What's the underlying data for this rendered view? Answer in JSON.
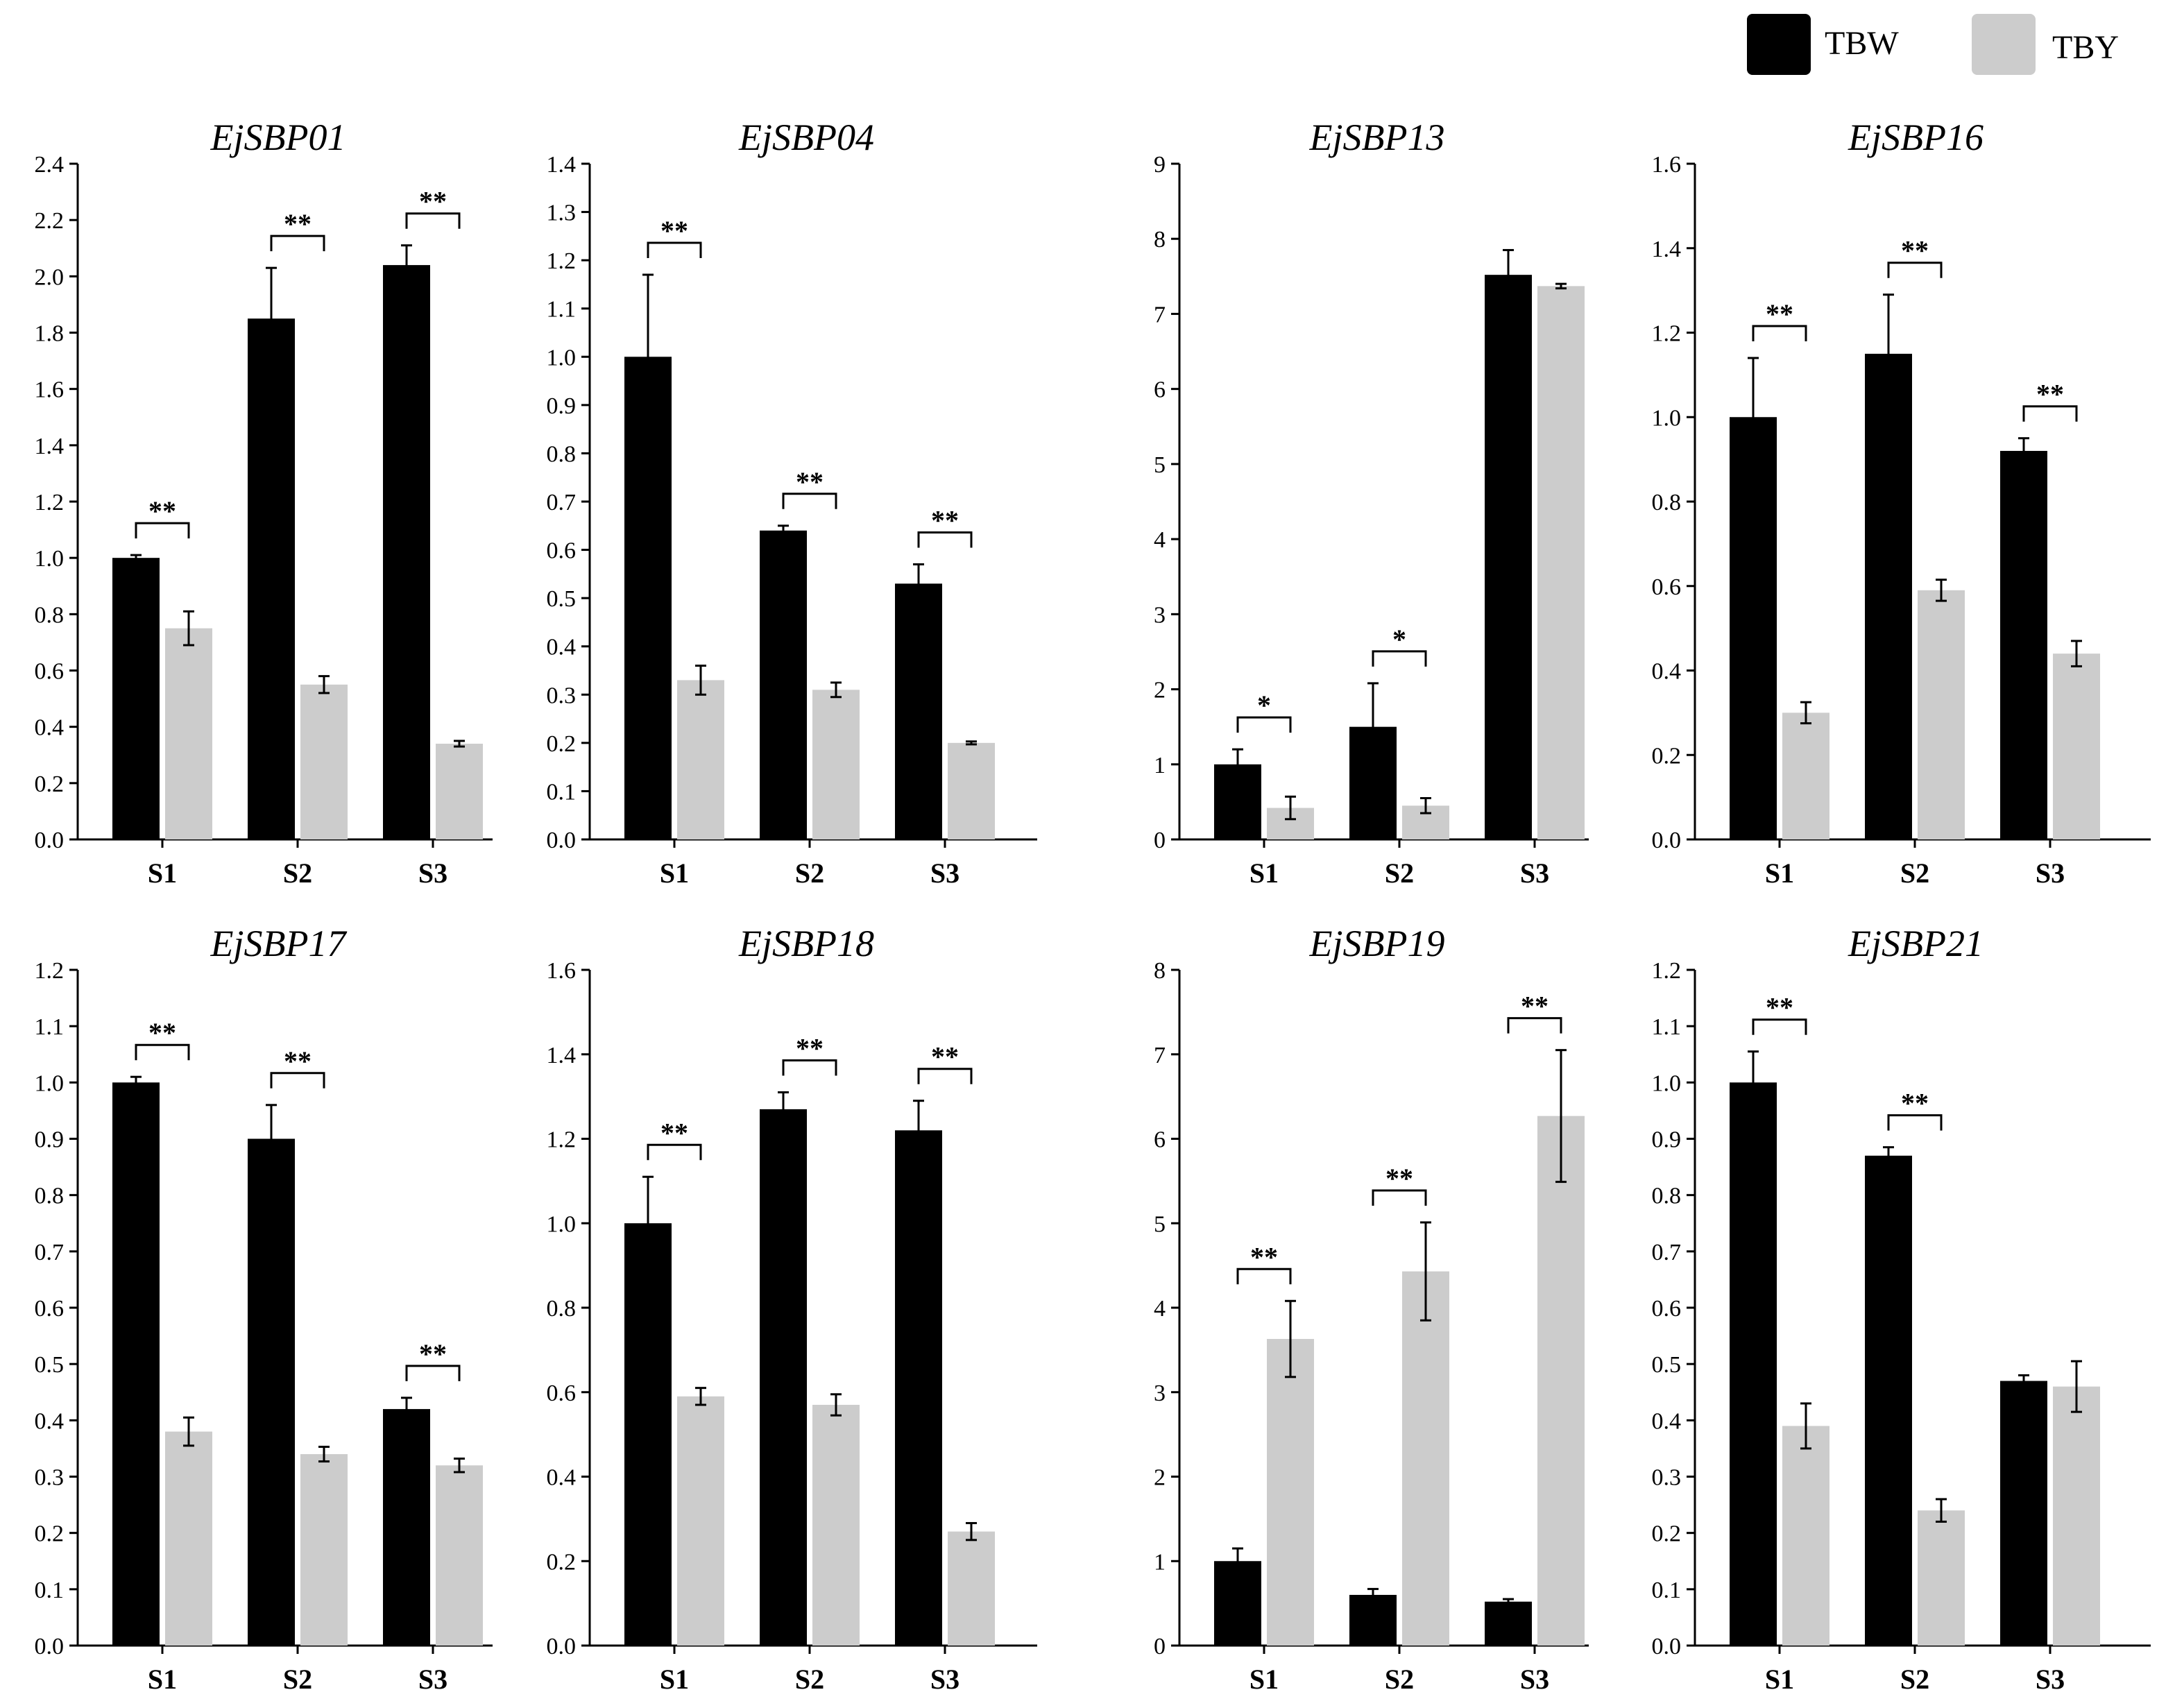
{
  "legend": [
    {
      "name": "TBW",
      "color": "#000000"
    },
    {
      "name": "TBY",
      "color": "#cccccc"
    }
  ],
  "chart_data": [
    {
      "type": "bar",
      "title": "EjSBP01",
      "categories": [
        "S1",
        "S2",
        "S3"
      ],
      "ylim": [
        0,
        2.4
      ],
      "ystep": 0.2,
      "yticks": [
        "0.0",
        "0.2",
        "0.4",
        "0.6",
        "0.8",
        "1.0",
        "1.2",
        "1.4",
        "1.6",
        "1.8",
        "2.0",
        "2.2",
        "2.4"
      ],
      "series": [
        {
          "name": "TBW",
          "values": [
            1.0,
            1.85,
            2.04
          ],
          "errors": [
            0.01,
            0.18,
            0.07
          ]
        },
        {
          "name": "TBY",
          "values": [
            0.75,
            0.55,
            0.34
          ],
          "errors": [
            0.06,
            0.03,
            0.01
          ]
        }
      ],
      "significance": [
        "**",
        "**",
        "**"
      ]
    },
    {
      "type": "bar",
      "title": "EjSBP04",
      "categories": [
        "S1",
        "S2",
        "S3"
      ],
      "ylim": [
        0,
        1.4
      ],
      "ystep": 0.1,
      "yticks": [
        "0.0",
        "0.1",
        "0.2",
        "0.3",
        "0.4",
        "0.5",
        "0.6",
        "0.7",
        "0.8",
        "0.9",
        "1.0",
        "1.1",
        "1.2",
        "1.3",
        "1.4"
      ],
      "series": [
        {
          "name": "TBW",
          "values": [
            1.0,
            0.64,
            0.53
          ],
          "errors": [
            0.17,
            0.01,
            0.04
          ]
        },
        {
          "name": "TBY",
          "values": [
            0.33,
            0.31,
            0.2
          ],
          "errors": [
            0.03,
            0.015,
            0.003
          ]
        }
      ],
      "significance": [
        "**",
        "**",
        "**"
      ]
    },
    {
      "type": "bar",
      "title": "EjSBP13",
      "categories": [
        "S1",
        "S2",
        "S3"
      ],
      "ylim": [
        0,
        9
      ],
      "ystep": 1,
      "yticks": [
        "0",
        "1",
        "2",
        "3",
        "4",
        "5",
        "6",
        "7",
        "8",
        "9"
      ],
      "series": [
        {
          "name": "TBW",
          "values": [
            1.0,
            1.5,
            7.52
          ],
          "errors": [
            0.2,
            0.58,
            0.33
          ]
        },
        {
          "name": "TBY",
          "values": [
            0.42,
            0.45,
            7.37
          ],
          "errors": [
            0.15,
            0.1,
            0.03
          ]
        }
      ],
      "significance": [
        "*",
        "*",
        ""
      ]
    },
    {
      "type": "bar",
      "title": "EjSBP16",
      "categories": [
        "S1",
        "S2",
        "S3"
      ],
      "ylim": [
        0,
        1.6
      ],
      "ystep": 0.2,
      "yticks": [
        "0.0",
        "0.2",
        "0.4",
        "0.6",
        "0.8",
        "1.0",
        "1.2",
        "1.4",
        "1.6"
      ],
      "series": [
        {
          "name": "TBW",
          "values": [
            1.0,
            1.15,
            0.92
          ],
          "errors": [
            0.14,
            0.14,
            0.03
          ]
        },
        {
          "name": "TBY",
          "values": [
            0.3,
            0.59,
            0.44
          ],
          "errors": [
            0.025,
            0.025,
            0.03
          ]
        }
      ],
      "significance": [
        "**",
        "**",
        "**"
      ]
    },
    {
      "type": "bar",
      "title": "EjSBP17",
      "categories": [
        "S1",
        "S2",
        "S3"
      ],
      "ylim": [
        0,
        1.2
      ],
      "ystep": 0.1,
      "yticks": [
        "0.0",
        "0.1",
        "0.2",
        "0.3",
        "0.4",
        "0.5",
        "0.6",
        "0.7",
        "0.8",
        "0.9",
        "1.0",
        "1.1",
        "1.2"
      ],
      "series": [
        {
          "name": "TBW",
          "values": [
            1.0,
            0.9,
            0.42
          ],
          "errors": [
            0.01,
            0.06,
            0.02
          ]
        },
        {
          "name": "TBY",
          "values": [
            0.38,
            0.34,
            0.32
          ],
          "errors": [
            0.025,
            0.013,
            0.012
          ]
        }
      ],
      "significance": [
        "**",
        "**",
        "**"
      ]
    },
    {
      "type": "bar",
      "title": "EjSBP18",
      "categories": [
        "S1",
        "S2",
        "S3"
      ],
      "ylim": [
        0,
        1.6
      ],
      "ystep": 0.2,
      "yticks": [
        "0.0",
        "0.2",
        "0.4",
        "0.6",
        "0.8",
        "1.0",
        "1.2",
        "1.4",
        "1.6"
      ],
      "series": [
        {
          "name": "TBW",
          "values": [
            1.0,
            1.27,
            1.22
          ],
          "errors": [
            0.11,
            0.04,
            0.07
          ]
        },
        {
          "name": "TBY",
          "values": [
            0.59,
            0.57,
            0.27
          ],
          "errors": [
            0.02,
            0.025,
            0.02
          ]
        }
      ],
      "significance": [
        "**",
        "**",
        "**"
      ]
    },
    {
      "type": "bar",
      "title": "EjSBP19",
      "categories": [
        "S1",
        "S2",
        "S3"
      ],
      "ylim": [
        0,
        8
      ],
      "ystep": 1,
      "yticks": [
        "0",
        "1",
        "2",
        "3",
        "4",
        "5",
        "6",
        "7",
        "8"
      ],
      "series": [
        {
          "name": "TBW",
          "values": [
            1.0,
            0.6,
            0.52
          ],
          "errors": [
            0.15,
            0.07,
            0.03
          ]
        },
        {
          "name": "TBY",
          "values": [
            3.63,
            4.43,
            6.27
          ],
          "errors": [
            0.45,
            0.58,
            0.78
          ]
        }
      ],
      "significance": [
        "**",
        "**",
        "**"
      ]
    },
    {
      "type": "bar",
      "title": "EjSBP21",
      "categories": [
        "S1",
        "S2",
        "S3"
      ],
      "ylim": [
        0,
        1.2
      ],
      "ystep": 0.1,
      "yticks": [
        "0.0",
        "0.1",
        "0.2",
        "0.3",
        "0.4",
        "0.5",
        "0.6",
        "0.7",
        "0.8",
        "0.9",
        "1.0",
        "1.1",
        "1.2"
      ],
      "series": [
        {
          "name": "TBW",
          "values": [
            1.0,
            0.87,
            0.47
          ],
          "errors": [
            0.055,
            0.015,
            0.01
          ]
        },
        {
          "name": "TBY",
          "values": [
            0.39,
            0.24,
            0.46
          ],
          "errors": [
            0.04,
            0.02,
            0.045
          ]
        }
      ],
      "significance": [
        "**",
        "**",
        ""
      ]
    }
  ]
}
